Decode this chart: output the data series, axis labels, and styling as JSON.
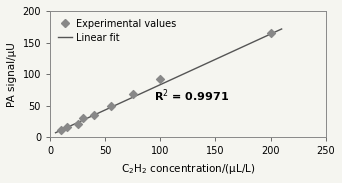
{
  "x_data": [
    10,
    15,
    25,
    30,
    40,
    55,
    75,
    100,
    200
  ],
  "y_data": [
    12,
    16,
    22,
    30,
    35,
    50,
    68,
    92,
    165
  ],
  "line_x": [
    5,
    210
  ],
  "line_slope": 0.8,
  "line_intercept": 3.5,
  "r_squared": "R$^{2}$ = 0.9971",
  "r_sq_x": 128,
  "r_sq_y": 58,
  "xlabel": "C$_{2}$H$_{2}$ concentration/(μL/L)",
  "ylabel": "PA signal/μU",
  "xlim": [
    0,
    250
  ],
  "ylim": [
    0,
    200
  ],
  "xticks": [
    0,
    50,
    100,
    150,
    200,
    250
  ],
  "yticks": [
    0,
    50,
    100,
    150,
    200
  ],
  "marker_color": "#888888",
  "line_color": "#555555",
  "background": "#f5f5f0",
  "legend_marker_label": "Experimental values",
  "legend_line_label": "Linear fit",
  "marker_size": 4,
  "line_width": 1.0,
  "font_size": 7,
  "label_font_size": 7.5,
  "annotation_font_size": 8,
  "spine_color": "#888888",
  "tick_color": "#555555"
}
